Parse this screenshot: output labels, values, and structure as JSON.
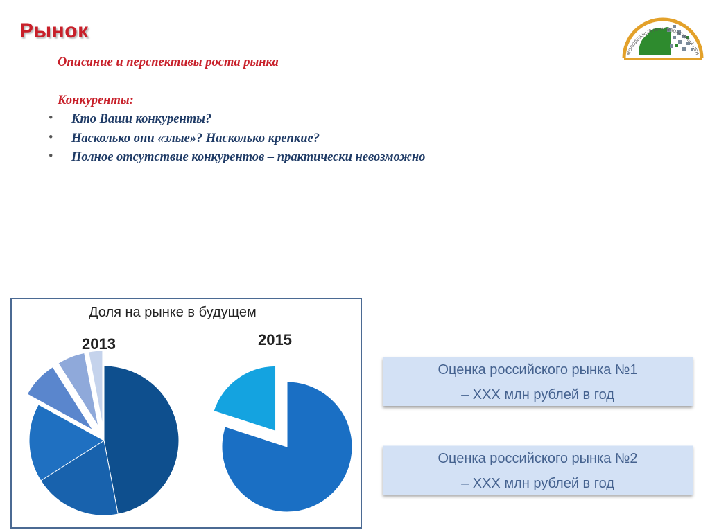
{
  "slide": {
    "title": "Рынок"
  },
  "content": {
    "item1": {
      "marker": "–",
      "text": "Описание и перспективы роста рынка"
    },
    "item2": {
      "marker": "–",
      "text": "Конкуренты:"
    },
    "bullets": [
      {
        "marker": "•",
        "text": "Кто Ваши конкуренты?"
      },
      {
        "marker": "•",
        "text": "Насколько они «злые»? Насколько крепкие?"
      },
      {
        "marker": "•",
        "text": "Полное отсутствие конкурентов – практически невозможно"
      }
    ]
  },
  "logo": {
    "text": "МОЛОДЕЖНЫЙ ИННОВАЦИОННЫЙ ЦЕНТР",
    "icon": "youth-innovation-center-logo"
  },
  "chart_data": {
    "type": "pie",
    "title": "Доля на рынке в будущем",
    "charts": [
      {
        "label": "2013",
        "slices": [
          {
            "value": 47,
            "color": "#0e4f8e",
            "exploded": false
          },
          {
            "value": 19,
            "color": "#1862ad",
            "exploded": false
          },
          {
            "value": 17,
            "color": "#1f70c1",
            "exploded": false
          },
          {
            "value": 8,
            "color": "#5a86cd",
            "exploded": true
          },
          {
            "value": 6,
            "color": "#8fa9da",
            "exploded": true
          },
          {
            "value": 3,
            "color": "#c5d3ec",
            "exploded": true
          }
        ]
      },
      {
        "label": "2015",
        "slices": [
          {
            "value": 80,
            "color": "#1a6fc4",
            "exploded": false
          },
          {
            "value": 20,
            "color": "#14a3e0",
            "exploded": true
          }
        ]
      }
    ]
  },
  "estimates": [
    {
      "line1": "Оценка российского рынка №1",
      "line2": "– ХХХ  млн рублей в год"
    },
    {
      "line1": "Оценка российского рынка №2",
      "line2": "– ХХХ  млн рублей в год"
    }
  ]
}
